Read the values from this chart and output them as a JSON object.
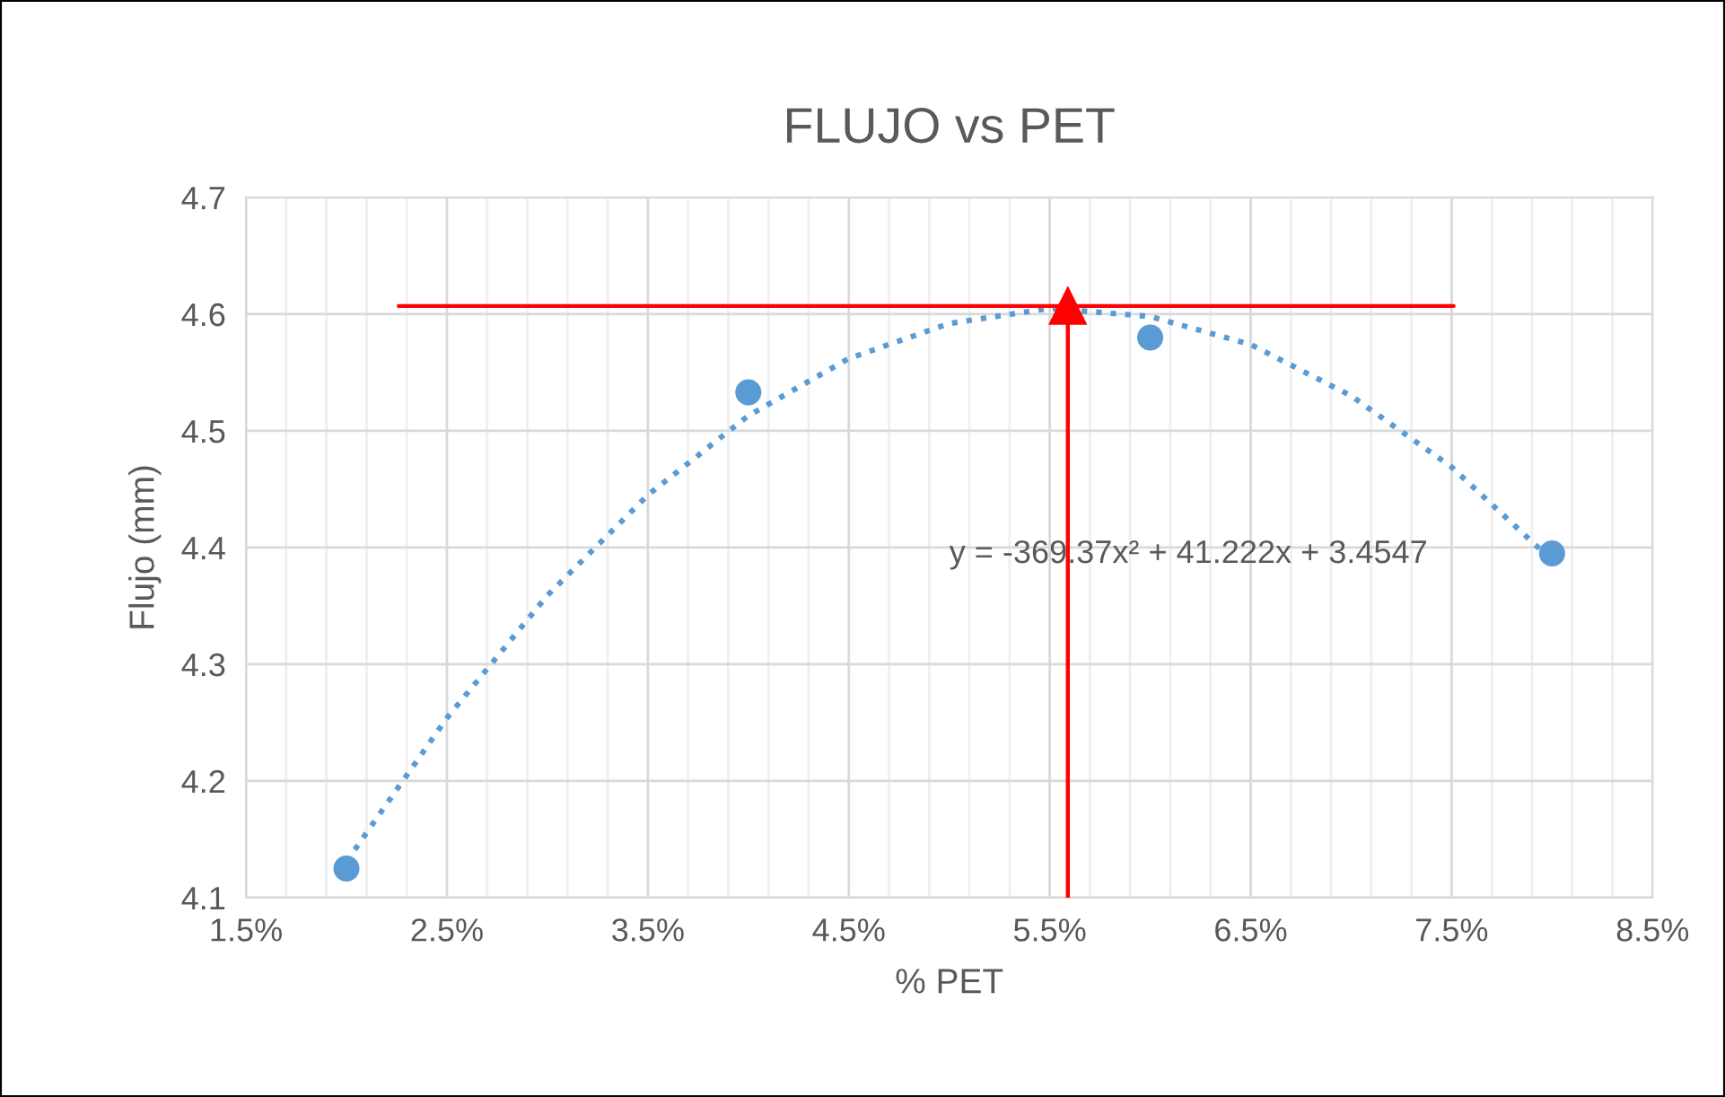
{
  "chart_data": {
    "type": "scatter",
    "title": "FLUJO vs PET",
    "xlabel": "% PET",
    "ylabel": "Flujo (mm)",
    "annotations": [
      "y = -369.37x² + 41.222x + 3.4547"
    ],
    "series": [
      {
        "color": "#5b9bd5",
        "marker": "circle",
        "x": [
          0.02,
          0.04,
          0.06,
          0.08
        ],
        "values": [
          4.125,
          4.533,
          4.58,
          4.395
        ]
      },
      {
        "type": "line",
        "color": "#5b9bd5",
        "line_style": "dotted",
        "marker": "none",
        "x": [
          0.02,
          0.025,
          0.03,
          0.035,
          0.04,
          0.045,
          0.05,
          0.055,
          0.06,
          0.065,
          0.07,
          0.075,
          0.08
        ],
        "values": [
          4.131,
          4.254,
          4.359,
          4.445,
          4.513,
          4.562,
          4.592,
          4.605,
          4.598,
          4.574,
          4.53,
          4.469,
          4.389
        ]
      },
      {
        "type": "line",
        "color": "#ff0000",
        "line_style": "solid",
        "marker": "none",
        "x": [
          0.0226,
          0.0751
        ],
        "values": [
          4.607,
          4.607
        ]
      },
      {
        "type": "line",
        "color": "#ff0000",
        "line_style": "solid",
        "marker": "triangle",
        "x": [
          0.0559,
          0.0559
        ],
        "values": [
          4.1,
          4.607
        ]
      }
    ],
    "xlim": [
      0.015,
      0.085
    ],
    "ylim": [
      4.1,
      4.7
    ],
    "xticks": [
      {
        "value": 0.015,
        "label": "1.5%"
      },
      {
        "value": 0.017,
        "label": null
      },
      {
        "value": 0.019,
        "label": null
      },
      {
        "value": 0.021,
        "label": null
      },
      {
        "value": 0.023,
        "label": null
      },
      {
        "value": 0.025,
        "label": "2.5%"
      },
      {
        "value": 0.027,
        "label": null
      },
      {
        "value": 0.029,
        "label": null
      },
      {
        "value": 0.031,
        "label": null
      },
      {
        "value": 0.033,
        "label": null
      },
      {
        "value": 0.035,
        "label": "3.5%"
      },
      {
        "value": 0.037,
        "label": null
      },
      {
        "value": 0.039,
        "label": null
      },
      {
        "value": 0.041,
        "label": null
      },
      {
        "value": 0.043,
        "label": null
      },
      {
        "value": 0.045,
        "label": "4.5%"
      },
      {
        "value": 0.047,
        "label": null
      },
      {
        "value": 0.049,
        "label": null
      },
      {
        "value": 0.051,
        "label": null
      },
      {
        "value": 0.053,
        "label": null
      },
      {
        "value": 0.055,
        "label": "5.5%"
      },
      {
        "value": 0.057,
        "label": null
      },
      {
        "value": 0.059,
        "label": null
      },
      {
        "value": 0.061,
        "label": null
      },
      {
        "value": 0.063,
        "label": null
      },
      {
        "value": 0.065,
        "label": "6.5%"
      },
      {
        "value": 0.067,
        "label": null
      },
      {
        "value": 0.069,
        "label": null
      },
      {
        "value": 0.071,
        "label": null
      },
      {
        "value": 0.073,
        "label": null
      },
      {
        "value": 0.075,
        "label": "7.5%"
      },
      {
        "value": 0.077,
        "label": null
      },
      {
        "value": 0.079,
        "label": null
      },
      {
        "value": 0.081,
        "label": null
      },
      {
        "value": 0.083,
        "label": null
      },
      {
        "value": 0.085,
        "label": "8.5%"
      }
    ],
    "yticks": [
      4.1,
      4.2,
      4.3,
      4.4,
      4.5,
      4.6,
      4.7
    ],
    "grid": true,
    "legend": false
  }
}
